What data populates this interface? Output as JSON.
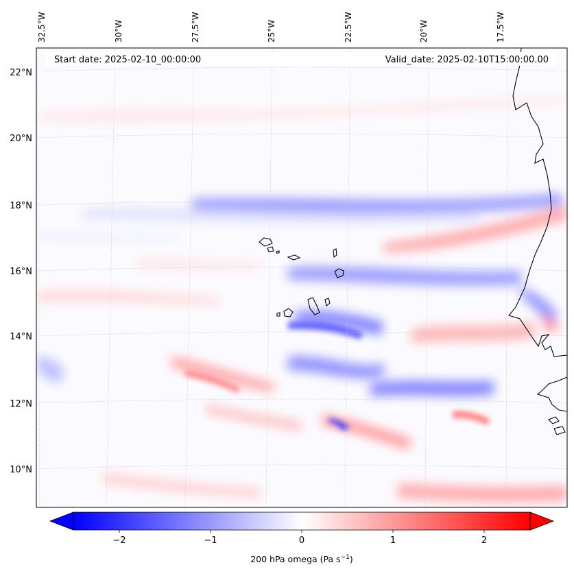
{
  "map": {
    "start_date_text": "Start date: 2025-02-10_00:00:00",
    "valid_date_text": "Valid_date: 2025-02-10T15:00:00.00",
    "lon_labels": [
      "32.5°W",
      "30°W",
      "27.5°W",
      "25°W",
      "22.5°W",
      "20°W",
      "17.5°W"
    ],
    "lat_labels": [
      "22°N",
      "20°N",
      "18°N",
      "16°N",
      "14°N",
      "12°N",
      "10°N"
    ],
    "colors": {
      "negative": "#0000ff",
      "neutral": "#ffffff",
      "positive": "#ff0000",
      "coast": "#000000",
      "grid": "#bbbbbb"
    }
  },
  "colorbar": {
    "tick_labels": [
      "−2",
      "−1",
      "0",
      "1",
      "2"
    ],
    "label_prefix": "200 hPa omega (Pa s",
    "label_exp": "−1",
    "label_suffix": ")"
  }
}
